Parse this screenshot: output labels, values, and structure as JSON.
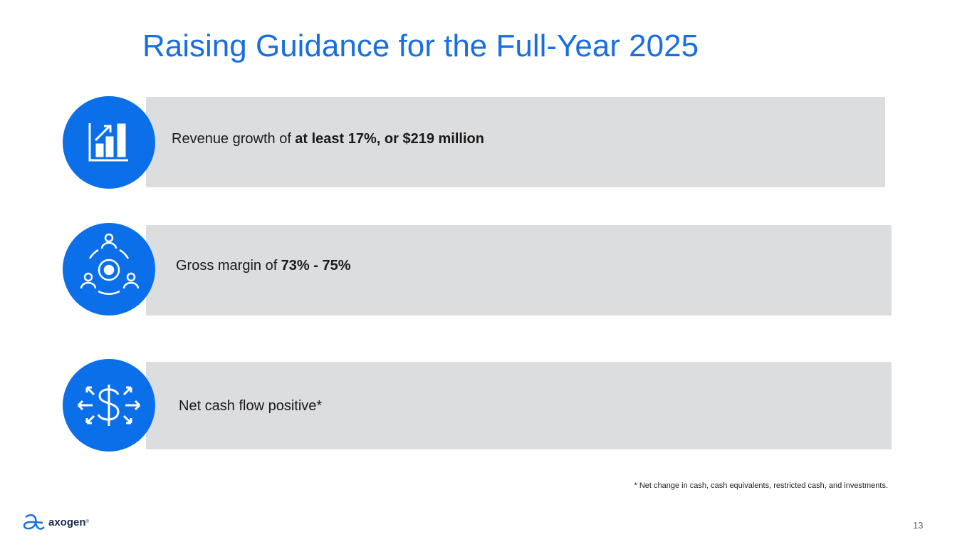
{
  "title": "Raising Guidance for the Full-Year 2025",
  "items": [
    {
      "text": "Revenue growth of",
      "bold": "at least 17%, or $219 million"
    },
    {
      "text": "Gross margin of",
      "bold": "73% - 75%"
    },
    {
      "text": "Net cash flow positive*"
    }
  ],
  "footnote": "* Net change in cash, cash equivalents, restricted cash, and investments.",
  "logo": "axogen",
  "logo_reg": "®",
  "page_number": "13"
}
